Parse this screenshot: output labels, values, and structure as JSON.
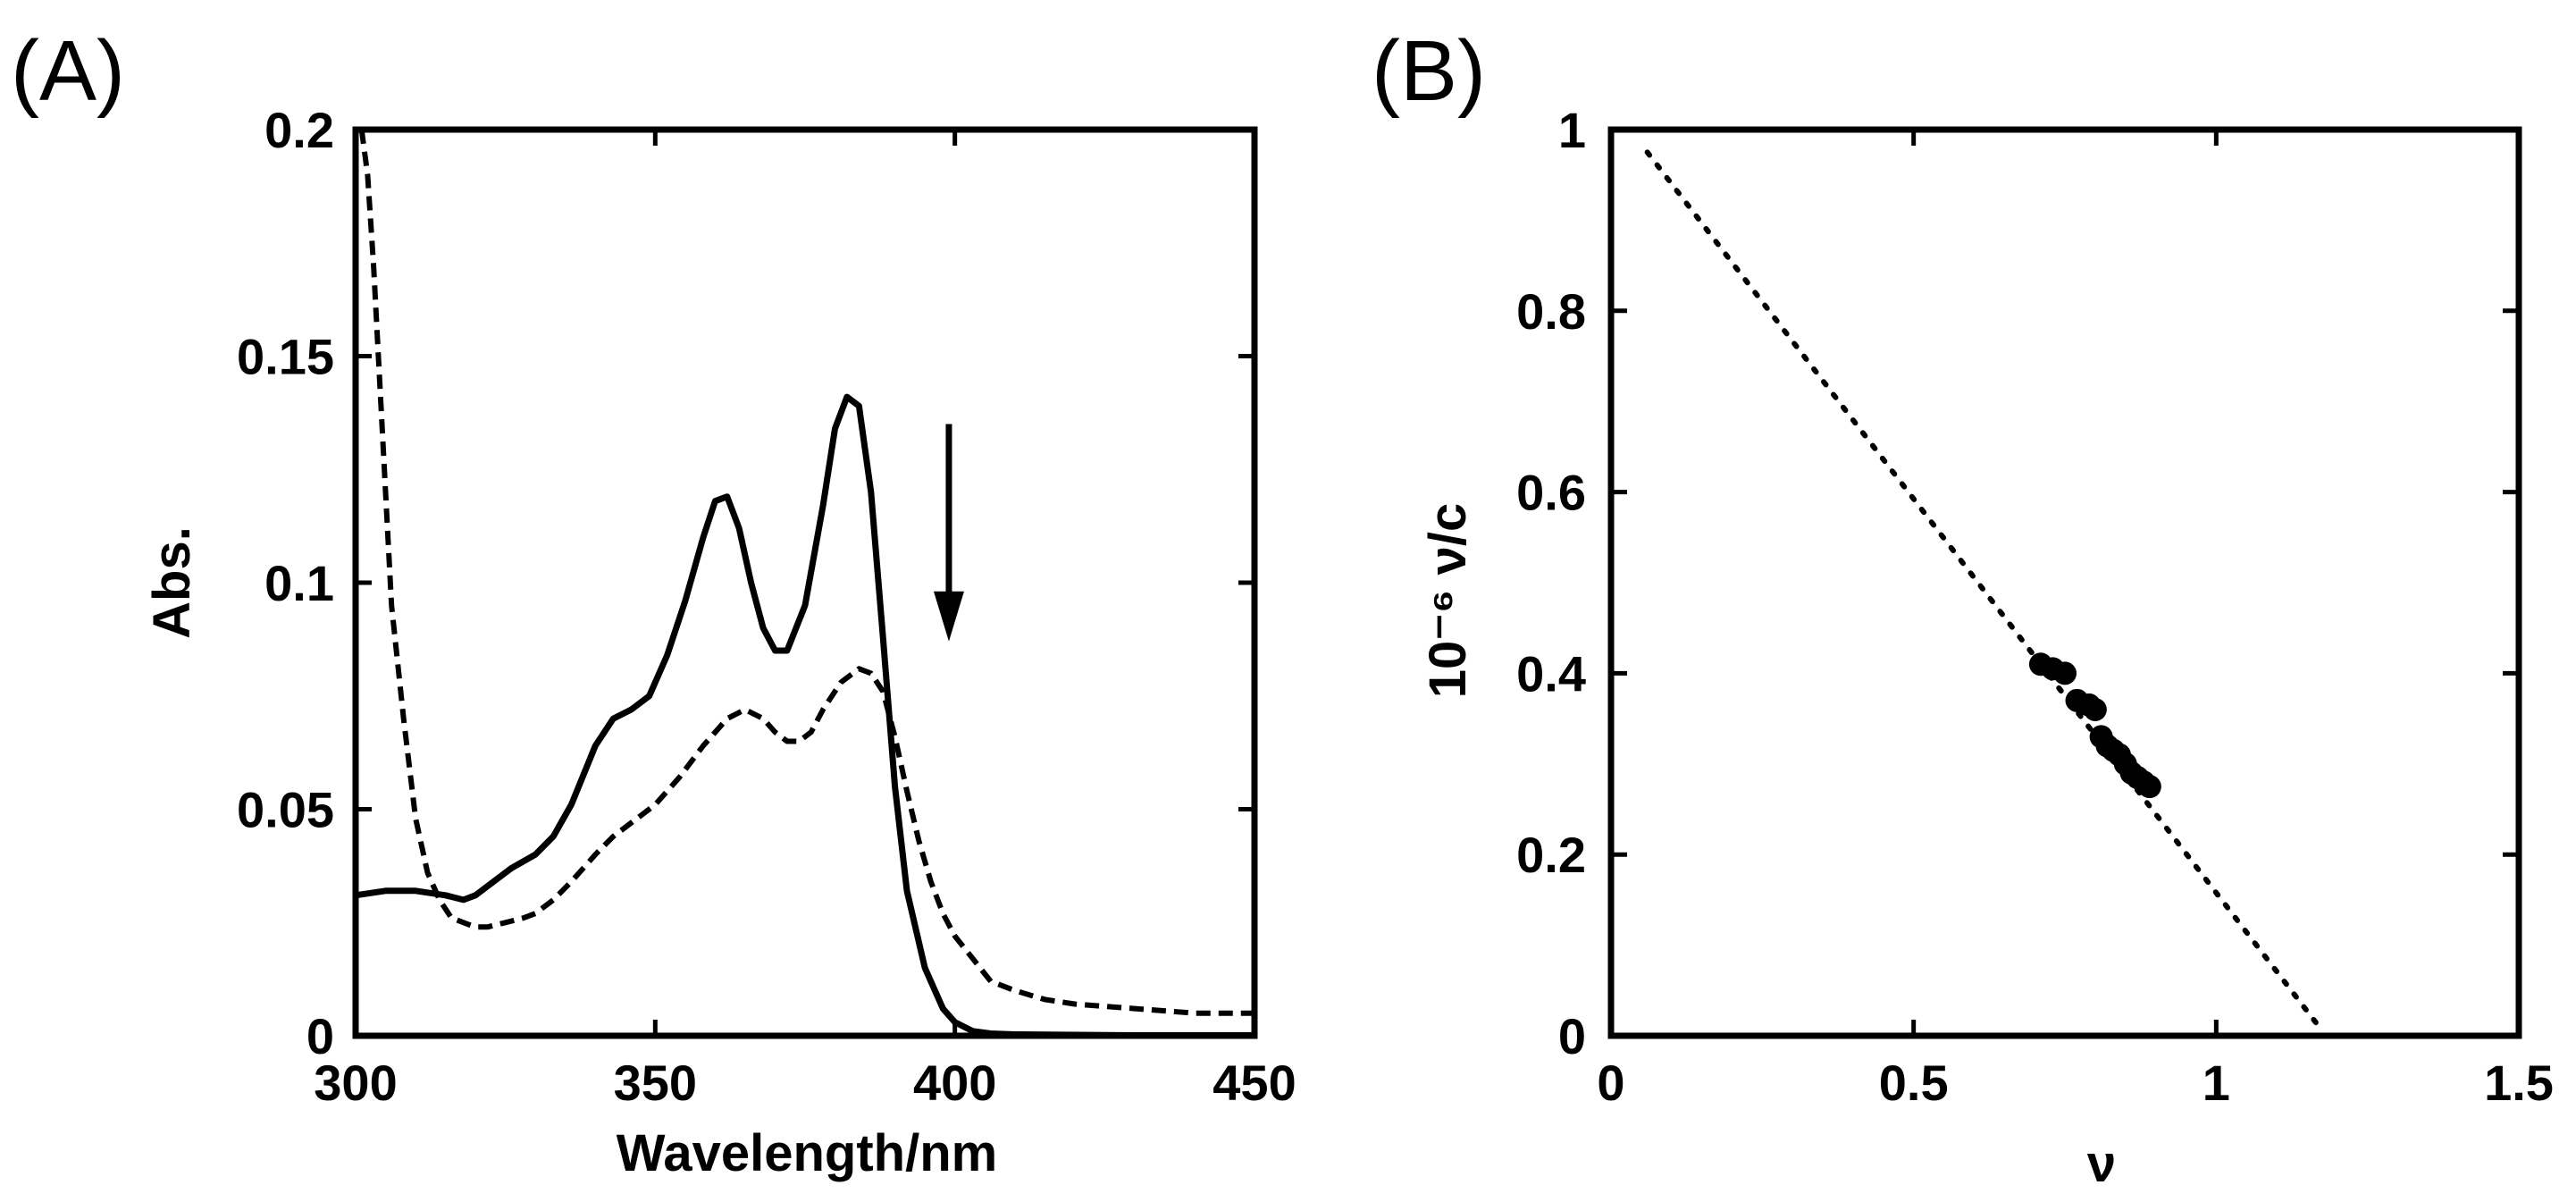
{
  "chart_data": [
    {
      "type": "line",
      "panel_label": "(A)",
      "xlabel": "Wavelength/nm",
      "ylabel": "Abs.",
      "xlim": [
        300,
        450
      ],
      "ylim": [
        0,
        0.2
      ],
      "xticks": [
        300,
        350,
        400,
        450
      ],
      "xtick_labels": [
        "300",
        "350",
        "400",
        "450"
      ],
      "yticks": [
        0,
        0.05,
        0.1,
        0.15,
        0.2
      ],
      "ytick_labels": [
        "0",
        "0.05",
        "0.1",
        "0.15",
        "0.2"
      ],
      "annotation": "downward arrow at ~400 nm indicating decreasing absorbance",
      "arrow": {
        "x": 399,
        "y_from": 0.135,
        "y_to": 0.089
      },
      "series": [
        {
          "name": "solid",
          "style": "solid",
          "x": [
            300,
            305,
            310,
            315,
            318,
            320,
            323,
            326,
            330,
            333,
            336,
            340,
            343,
            346,
            349,
            352,
            355,
            358,
            360,
            362,
            364,
            366,
            368,
            370,
            372,
            375,
            378,
            380,
            382,
            384,
            386,
            388,
            390,
            392,
            395,
            398,
            400,
            403,
            406,
            410,
            420,
            430,
            440,
            450
          ],
          "y": [
            0.031,
            0.032,
            0.032,
            0.031,
            0.03,
            0.031,
            0.034,
            0.037,
            0.04,
            0.044,
            0.051,
            0.064,
            0.07,
            0.072,
            0.075,
            0.084,
            0.096,
            0.11,
            0.118,
            0.119,
            0.112,
            0.1,
            0.09,
            0.085,
            0.085,
            0.095,
            0.117,
            0.134,
            0.141,
            0.139,
            0.12,
            0.088,
            0.055,
            0.032,
            0.015,
            0.006,
            0.003,
            0.001,
            0.0005,
            0.0003,
            0.0002,
            0.0001,
            0.0001,
            0.0001
          ]
        },
        {
          "name": "dashed",
          "style": "dashed",
          "x": [
            301,
            302,
            303,
            304,
            305,
            306,
            308,
            310,
            312,
            314,
            316,
            318,
            320,
            322,
            325,
            328,
            330,
            333,
            336,
            340,
            343,
            346,
            350,
            354,
            358,
            362,
            365,
            368,
            370,
            372,
            374,
            376,
            378,
            381,
            384,
            386,
            388,
            390,
            392,
            394,
            396,
            398,
            400,
            403,
            406,
            410,
            415,
            420,
            430,
            440,
            450
          ],
          "y": [
            0.2,
            0.19,
            0.17,
            0.145,
            0.12,
            0.095,
            0.07,
            0.048,
            0.036,
            0.03,
            0.026,
            0.025,
            0.024,
            0.024,
            0.025,
            0.026,
            0.027,
            0.03,
            0.034,
            0.04,
            0.044,
            0.047,
            0.051,
            0.057,
            0.064,
            0.07,
            0.072,
            0.07,
            0.067,
            0.065,
            0.065,
            0.067,
            0.072,
            0.078,
            0.081,
            0.08,
            0.076,
            0.066,
            0.054,
            0.043,
            0.034,
            0.027,
            0.022,
            0.017,
            0.012,
            0.01,
            0.008,
            0.007,
            0.006,
            0.005,
            0.005
          ]
        }
      ]
    },
    {
      "type": "scatter",
      "panel_label": "(B)",
      "xlabel": "ν",
      "ylabel": "10⁻⁶ ν/c",
      "xlim": [
        0,
        1.5
      ],
      "ylim": [
        0,
        1
      ],
      "xticks": [
        0,
        0.5,
        1,
        1.5
      ],
      "xtick_labels": [
        "0",
        "0.5",
        "1",
        "1.5"
      ],
      "yticks": [
        0,
        0.2,
        0.4,
        0.6,
        0.8,
        1
      ],
      "ytick_labels": [
        "0",
        "0.2",
        "0.4",
        "0.6",
        "0.8",
        "1"
      ],
      "points": {
        "x": [
          0.71,
          0.73,
          0.75,
          0.77,
          0.79,
          0.8,
          0.81,
          0.82,
          0.83,
          0.84,
          0.85,
          0.86,
          0.87,
          0.88,
          0.89
        ],
        "y": [
          0.41,
          0.405,
          0.4,
          0.37,
          0.365,
          0.36,
          0.33,
          0.32,
          0.315,
          0.31,
          0.3,
          0.29,
          0.285,
          0.28,
          0.275
        ]
      },
      "fit_line": {
        "style": "dotted",
        "x": [
          0.06,
          1.17
        ],
        "y": [
          0.975,
          0.01
        ]
      }
    }
  ]
}
